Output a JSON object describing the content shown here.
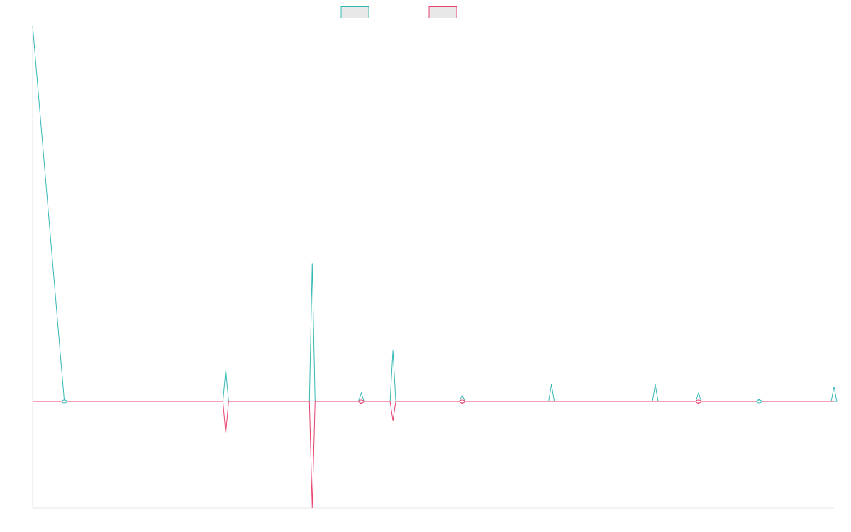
{
  "colors": {
    "teal": "#36b7b7",
    "pink": "#e8436e",
    "legend_fill": "#e8e8e8",
    "axis": "#e6e6e6"
  },
  "legend": {
    "items": [
      {
        "label": "",
        "color": "#36b7b7"
      },
      {
        "label": "",
        "color": "#e8436e"
      }
    ]
  },
  "chart_data": {
    "type": "line",
    "title": "",
    "xlabel": "",
    "ylabel": "",
    "grid": false,
    "legend_position": "top-center",
    "x": [
      0,
      11,
      53,
      67,
      72,
      97,
      114,
      125,
      138,
      149,
      180,
      200,
      216,
      231,
      252,
      258,
      278
    ],
    "xlim": [
      0,
      278
    ],
    "ylim": [
      -50,
      177
    ],
    "series": [
      {
        "color": "#36b7b7",
        "values": [
          177,
          0,
          0,
          15,
          0,
          65,
          4,
          24,
          0,
          3,
          8,
          0,
          8,
          4,
          1,
          0,
          7
        ]
      },
      {
        "color": "#e8436e",
        "values": [
          0,
          0,
          0,
          -15,
          0,
          -50,
          -1,
          -9,
          0,
          -1,
          0,
          0,
          0,
          -1,
          0,
          0,
          0
        ]
      }
    ]
  }
}
